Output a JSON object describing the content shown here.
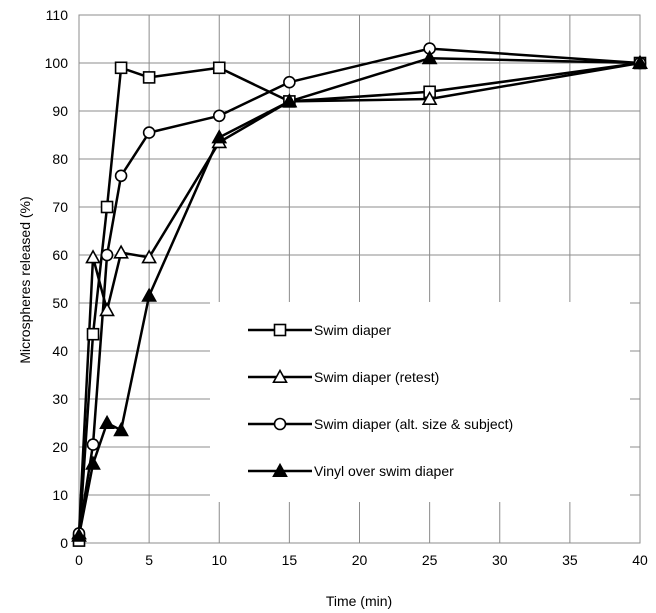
{
  "chart_data": {
    "type": "line",
    "xlabel": "Time (min)",
    "ylabel": "Microspheres released (%)",
    "xlim": [
      0,
      40
    ],
    "ylim": [
      0,
      110
    ],
    "x_ticks": [
      0,
      5,
      10,
      15,
      20,
      25,
      30,
      35,
      40
    ],
    "y_ticks": [
      0,
      10,
      20,
      30,
      40,
      50,
      60,
      70,
      80,
      90,
      100,
      110
    ],
    "grid": true,
    "legend_position": "center-right",
    "series": [
      {
        "name": "Swim diaper",
        "marker": "open-square",
        "x": [
          0,
          1,
          2,
          3,
          5,
          10,
          15,
          25,
          40
        ],
        "y": [
          0.5,
          43.5,
          70,
          99,
          97,
          99,
          92,
          94,
          100
        ]
      },
      {
        "name": "Swim diaper (retest)",
        "marker": "open-triangle",
        "x": [
          0,
          1,
          2,
          3,
          5,
          10,
          15,
          25,
          40
        ],
        "y": [
          2,
          59.5,
          48.5,
          60.5,
          59.5,
          83.5,
          92,
          92.5,
          100
        ]
      },
      {
        "name": "Swim diaper (alt. size & subject)",
        "marker": "open-circle",
        "x": [
          0,
          1,
          2,
          3,
          5,
          10,
          15,
          25,
          40
        ],
        "y": [
          2,
          20.5,
          60,
          76.5,
          85.5,
          89,
          96,
          103,
          100
        ]
      },
      {
        "name": "Vinyl over swim diaper",
        "marker": "filled-triangle",
        "x": [
          0,
          1,
          2,
          3,
          5,
          10,
          15,
          25,
          40
        ],
        "y": [
          1.5,
          16.5,
          25,
          23.5,
          51.5,
          84.5,
          92,
          101,
          100
        ]
      }
    ]
  }
}
